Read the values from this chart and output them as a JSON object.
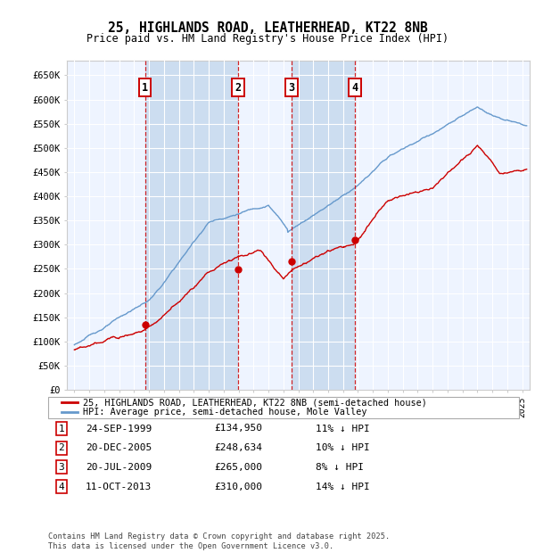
{
  "title": "25, HIGHLANDS ROAD, LEATHERHEAD, KT22 8NB",
  "subtitle": "Price paid vs. HM Land Registry's House Price Index (HPI)",
  "ylim": [
    0,
    680000
  ],
  "yticks": [
    0,
    50000,
    100000,
    150000,
    200000,
    250000,
    300000,
    350000,
    400000,
    450000,
    500000,
    550000,
    600000,
    650000
  ],
  "ytick_labels": [
    "£0",
    "£50K",
    "£100K",
    "£150K",
    "£200K",
    "£250K",
    "£300K",
    "£350K",
    "£400K",
    "£450K",
    "£500K",
    "£550K",
    "£600K",
    "£650K"
  ],
  "background_color": "#ffffff",
  "plot_bg_color": "#ddeeff",
  "plot_bg_color2": "#eef4ff",
  "grid_color": "#ffffff",
  "red_color": "#cc0000",
  "blue_color": "#6699cc",
  "shade_color": "#ddeeff",
  "sale_years": [
    1999.73,
    2005.97,
    2009.55,
    2013.78
  ],
  "sale_prices": [
    134950,
    248634,
    265000,
    310000
  ],
  "sale_labels": [
    "1",
    "2",
    "3",
    "4"
  ],
  "sale_dates": [
    "24-SEP-1999",
    "20-DEC-2005",
    "20-JUL-2009",
    "11-OCT-2013"
  ],
  "sale_price_labels": [
    "£134,950",
    "£248,634",
    "£265,000",
    "£310,000"
  ],
  "sale_hpi_labels": [
    "11% ↓ HPI",
    "10% ↓ HPI",
    "8% ↓ HPI",
    "14% ↓ HPI"
  ],
  "legend_line1": "25, HIGHLANDS ROAD, LEATHERHEAD, KT22 8NB (semi-detached house)",
  "legend_line2": "HPI: Average price, semi-detached house, Mole Valley",
  "footnote": "Contains HM Land Registry data © Crown copyright and database right 2025.\nThis data is licensed under the Open Government Licence v3.0.",
  "xlim": [
    1994.5,
    2025.5
  ],
  "x_start": 1995.0,
  "x_end": 2025.3
}
